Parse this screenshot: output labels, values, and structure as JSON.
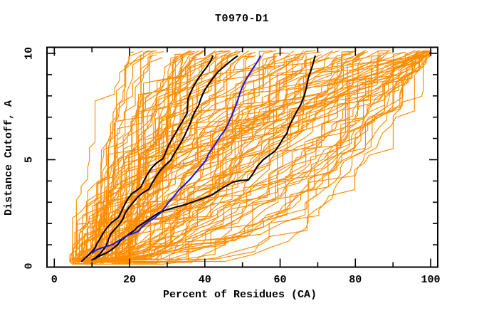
{
  "chart_data": {
    "type": "line",
    "title": "T0970-D1",
    "xlabel": "Percent of Residues (CA)",
    "ylabel": "Distance Cutoff, A",
    "x_axis": {
      "range": [
        -2,
        102
      ],
      "major_ticks": [
        0,
        20,
        40,
        60,
        80,
        100
      ],
      "major_tick_labels": [
        "0",
        "20",
        "40",
        "60",
        "80",
        "100"
      ],
      "minor_ticks": [
        10,
        30,
        50,
        70,
        90
      ]
    },
    "y_axis": {
      "range": [
        0,
        10.3
      ],
      "major_ticks": [
        0,
        5,
        10
      ],
      "major_tick_labels": [
        "0",
        "5",
        "10"
      ],
      "minor_ticks": [
        1,
        2,
        3,
        4,
        6,
        7,
        8,
        9
      ]
    },
    "grid": false,
    "legend": "none",
    "colors": {
      "background": "#ffffff",
      "axis": "#000000",
      "ensemble": "#ff8c00",
      "highlight": "#000000",
      "best_model": "#1a1ae0"
    },
    "series": [
      {
        "name": "model-ensemble-orange",
        "color": "#ff8c00",
        "width": 1.15,
        "type": "generated-ensemble",
        "generator": {
          "count": 128,
          "seed": 970137,
          "start_min": 4,
          "start_max": 21,
          "late_prob": 0.14,
          "late_min": 5,
          "late_max": 16,
          "hugger_prob": 0.16,
          "hugger_min": 95.5,
          "hugger_max": 100.2,
          "top_cap": 100.2,
          "x_cap": 100.2,
          "d_top_min": 9.78,
          "d_top_max": 10.12
        }
      },
      {
        "name": "highlight-model-black-1",
        "color": "#000000",
        "width": 2.1,
        "points": [
          [
            7.3,
            0.22
          ],
          [
            8.0,
            0.35
          ],
          [
            9.0,
            0.5
          ],
          [
            10.0,
            0.68
          ],
          [
            10.8,
            0.85
          ],
          [
            11.3,
            1.04
          ],
          [
            12.2,
            1.3
          ],
          [
            13.0,
            1.55
          ],
          [
            14.0,
            1.8
          ],
          [
            15.1,
            2.02
          ],
          [
            16.0,
            2.15
          ],
          [
            17.0,
            2.27
          ],
          [
            17.8,
            2.55
          ],
          [
            18.6,
            2.85
          ],
          [
            19.5,
            3.15
          ],
          [
            20.6,
            3.4
          ],
          [
            21.8,
            3.55
          ],
          [
            23.0,
            3.71
          ],
          [
            23.8,
            4.0
          ],
          [
            24.7,
            4.3
          ],
          [
            25.8,
            4.6
          ],
          [
            27.0,
            4.82
          ],
          [
            28.0,
            4.95
          ],
          [
            28.9,
            5.05
          ],
          [
            29.6,
            5.35
          ],
          [
            30.3,
            5.65
          ],
          [
            31.2,
            5.95
          ],
          [
            32.2,
            6.25
          ],
          [
            33.2,
            6.55
          ],
          [
            34.2,
            6.85
          ],
          [
            35.0,
            7.1
          ],
          [
            35.3,
            7.19
          ],
          [
            35.4,
            7.55
          ],
          [
            35.5,
            7.86
          ],
          [
            36.2,
            8.15
          ],
          [
            37.0,
            8.45
          ],
          [
            38.0,
            8.75
          ],
          [
            39.2,
            9.05
          ],
          [
            40.5,
            9.35
          ],
          [
            41.5,
            9.62
          ],
          [
            42.1,
            9.87
          ]
        ]
      },
      {
        "name": "highlight-model-black-2",
        "color": "#000000",
        "width": 2.1,
        "points": [
          [
            10.0,
            0.28
          ],
          [
            11.0,
            0.4
          ],
          [
            12.0,
            0.55
          ],
          [
            12.8,
            0.72
          ],
          [
            13.6,
            0.9
          ],
          [
            14.1,
            1.1
          ],
          [
            14.5,
            1.3
          ],
          [
            15.0,
            1.51
          ],
          [
            16.0,
            1.72
          ],
          [
            17.2,
            1.95
          ],
          [
            18.2,
            2.2
          ],
          [
            18.9,
            2.51
          ],
          [
            19.8,
            2.75
          ],
          [
            21.0,
            3.0
          ],
          [
            22.2,
            3.25
          ],
          [
            23.6,
            3.45
          ],
          [
            25.1,
            3.61
          ],
          [
            26.0,
            3.9
          ],
          [
            27.0,
            4.2
          ],
          [
            28.2,
            4.5
          ],
          [
            29.5,
            4.75
          ],
          [
            30.8,
            4.95
          ],
          [
            31.8,
            5.25
          ],
          [
            32.8,
            5.55
          ],
          [
            33.8,
            5.85
          ],
          [
            34.8,
            6.2
          ],
          [
            35.9,
            6.62
          ],
          [
            36.6,
            6.95
          ],
          [
            37.3,
            7.25
          ],
          [
            38.3,
            7.53
          ],
          [
            38.9,
            7.85
          ],
          [
            39.6,
            8.15
          ],
          [
            40.6,
            8.45
          ],
          [
            42.0,
            8.8
          ],
          [
            43.6,
            9.15
          ],
          [
            45.6,
            9.45
          ],
          [
            47.3,
            9.7
          ],
          [
            48.6,
            9.87
          ]
        ]
      },
      {
        "name": "highlight-model-black-3",
        "color": "#000000",
        "width": 2.1,
        "points": [
          [
            10.7,
            0.33
          ],
          [
            11.8,
            0.45
          ],
          [
            13.0,
            0.55
          ],
          [
            13.7,
            0.6
          ],
          [
            14.8,
            0.72
          ],
          [
            15.8,
            0.85
          ],
          [
            16.8,
            1.0
          ],
          [
            17.5,
            1.17
          ],
          [
            18.8,
            1.35
          ],
          [
            20.2,
            1.55
          ],
          [
            21.4,
            1.7
          ],
          [
            22.1,
            1.84
          ],
          [
            23.5,
            2.0
          ],
          [
            25.0,
            2.18
          ],
          [
            26.4,
            2.35
          ],
          [
            27.8,
            2.51
          ],
          [
            30.0,
            2.65
          ],
          [
            32.5,
            2.78
          ],
          [
            35.0,
            2.9
          ],
          [
            37.2,
            3.04
          ],
          [
            39.5,
            3.18
          ],
          [
            42.0,
            3.35
          ],
          [
            44.0,
            3.6
          ],
          [
            45.9,
            3.8
          ],
          [
            47.5,
            3.95
          ],
          [
            49.5,
            4.02
          ],
          [
            51.6,
            4.05
          ],
          [
            52.8,
            4.35
          ],
          [
            54.0,
            4.7
          ],
          [
            55.5,
            5.0
          ],
          [
            57.0,
            5.2
          ],
          [
            58.6,
            5.39
          ],
          [
            59.8,
            5.7
          ],
          [
            60.8,
            6.0
          ],
          [
            61.8,
            6.25
          ],
          [
            62.3,
            6.52
          ],
          [
            63.2,
            6.85
          ],
          [
            64.2,
            7.2
          ],
          [
            65.6,
            7.63
          ],
          [
            66.4,
            8.0
          ],
          [
            67.0,
            8.4
          ],
          [
            67.5,
            8.86
          ],
          [
            68.2,
            9.2
          ],
          [
            68.8,
            9.55
          ],
          [
            69.3,
            9.87
          ]
        ]
      },
      {
        "name": "best-model-blue",
        "color": "#1a1ae0",
        "width": 2.1,
        "points": [
          [
            10.2,
            0.62
          ],
          [
            10.6,
            0.7
          ],
          [
            11.6,
            0.78
          ],
          [
            12.4,
            0.84
          ],
          [
            13.0,
            0.88
          ],
          [
            14.2,
            0.94
          ],
          [
            15.6,
            1.02
          ],
          [
            16.4,
            1.12
          ],
          [
            17.6,
            1.24
          ],
          [
            19.0,
            1.4
          ],
          [
            20.6,
            1.52
          ],
          [
            22.1,
            1.61
          ],
          [
            23.4,
            1.86
          ],
          [
            25.0,
            2.08
          ],
          [
            26.6,
            2.26
          ],
          [
            28.3,
            2.51
          ],
          [
            29.2,
            2.72
          ],
          [
            30.4,
            3.0
          ],
          [
            31.8,
            3.28
          ],
          [
            33.2,
            3.6
          ],
          [
            34.6,
            3.82
          ],
          [
            35.9,
            4.05
          ],
          [
            37.3,
            4.34
          ],
          [
            38.8,
            4.66
          ],
          [
            40.2,
            4.95
          ],
          [
            41.0,
            5.28
          ],
          [
            42.3,
            5.6
          ],
          [
            43.4,
            5.92
          ],
          [
            44.4,
            6.18
          ],
          [
            45.3,
            6.39
          ],
          [
            46.2,
            6.7
          ],
          [
            47.0,
            7.0
          ],
          [
            47.8,
            7.35
          ],
          [
            48.6,
            7.73
          ],
          [
            49.2,
            8.05
          ],
          [
            49.9,
            8.4
          ],
          [
            50.8,
            8.72
          ],
          [
            51.9,
            9.05
          ],
          [
            53.0,
            9.35
          ],
          [
            54.0,
            9.62
          ],
          [
            54.8,
            9.87
          ]
        ]
      }
    ]
  }
}
